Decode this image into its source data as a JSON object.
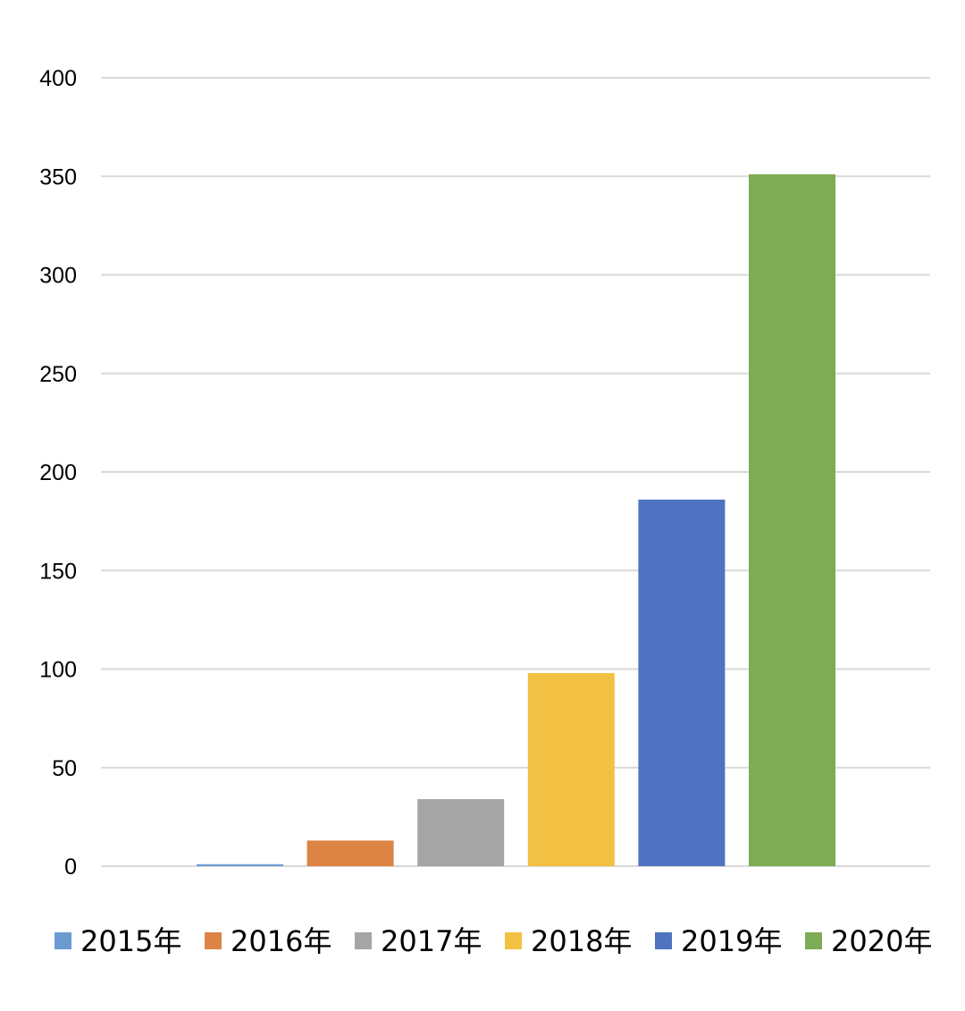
{
  "chart_data": {
    "type": "bar",
    "title": "",
    "xlabel": "",
    "ylabel": "",
    "ylim": [
      0,
      400
    ],
    "yticks": [
      0,
      50,
      100,
      150,
      200,
      250,
      300,
      350,
      400
    ],
    "grid": true,
    "legend_position": "bottom",
    "series": [
      {
        "name": "2015年",
        "value": 1,
        "color": "#6c9bd2"
      },
      {
        "name": "2016年",
        "value": 13,
        "color": "#dd8444"
      },
      {
        "name": "2017年",
        "value": 34,
        "color": "#a5a5a5"
      },
      {
        "name": "2018年",
        "value": 98,
        "color": "#f2c143"
      },
      {
        "name": "2019年",
        "value": 186,
        "color": "#5073c1"
      },
      {
        "name": "2020年",
        "value": 351,
        "color": "#7eab55"
      }
    ]
  }
}
